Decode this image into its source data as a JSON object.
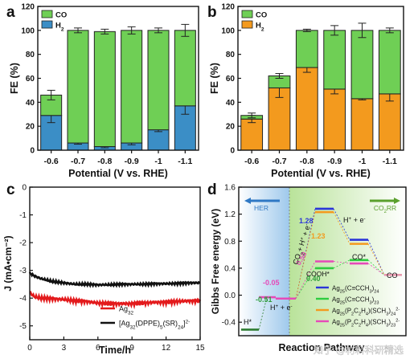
{
  "colors": {
    "co": "#6fcf55",
    "h2_a": "#3b8ec6",
    "h2_b": "#f39a1e",
    "axis": "#111111",
    "her_bg": "#c9e2f3",
    "co2rr_bg": "#e3f2d3",
    "c_ag32": "#e31a1c",
    "c_cluster": "#111111",
    "d_s1": "#2b35d8",
    "d_s2": "#2ecc40",
    "d_s3": "#f39a1e",
    "d_s4": "#e64ab8",
    "d_s5": "#e89ab0"
  },
  "watermark": "知乎 @材料科研精选",
  "chart_data": [
    {
      "panel": "a",
      "type": "bar",
      "stacked": true,
      "xlabel": "Potential (V vs. RHE)",
      "ylabel": "FE (%)",
      "ylim": [
        0,
        120
      ],
      "yticks": [
        0,
        20,
        40,
        60,
        80,
        100,
        120
      ],
      "categories": [
        "-0.6",
        "-0.7",
        "-0.8",
        "-0.9",
        "-1",
        "-1.1"
      ],
      "legend_position": "top-left",
      "series": [
        {
          "name": "H2",
          "color_key": "h2_a",
          "values": [
            29,
            6,
            3,
            6,
            17,
            37
          ],
          "errors": [
            6,
            1,
            1,
            1.5,
            1.5,
            7
          ]
        },
        {
          "name": "CO",
          "color_key": "co",
          "values": [
            17,
            94,
            96,
            94,
            83,
            63
          ],
          "errors": [
            4,
            2,
            2,
            3,
            2,
            5
          ]
        }
      ]
    },
    {
      "panel": "b",
      "type": "bar",
      "stacked": true,
      "xlabel": "Potential (V vs. RHE)",
      "ylabel": "FE (%)",
      "ylim": [
        0,
        120
      ],
      "yticks": [
        0,
        20,
        40,
        60,
        80,
        100,
        120
      ],
      "categories": [
        "-0.6",
        "-0.7",
        "-0.8",
        "-0.9",
        "-1",
        "-1.1"
      ],
      "legend_position": "top-left",
      "series": [
        {
          "name": "H2",
          "color_key": "h2_b",
          "values": [
            26,
            52,
            69,
            51,
            43,
            47
          ],
          "errors": [
            3,
            8,
            4,
            4,
            1,
            6
          ]
        },
        {
          "name": "CO",
          "color_key": "co",
          "values": [
            3,
            10,
            31,
            49,
            57,
            53
          ],
          "errors": [
            2,
            2,
            1,
            4,
            6,
            2
          ]
        }
      ]
    },
    {
      "panel": "c",
      "type": "line",
      "xlabel": "Time/h",
      "ylabel": "J (mA•cm⁻²)",
      "xlim": [
        0,
        15
      ],
      "ylim": [
        -5.5,
        0
      ],
      "xticks": [
        0,
        3,
        6,
        9,
        12,
        15
      ],
      "yticks": [
        -5,
        -4,
        -3,
        -2,
        -1,
        0
      ],
      "legend_position": "bottom-center",
      "series": [
        {
          "name": "Ag32",
          "color_key": "c_ag32",
          "x": [
            0,
            0.4,
            1,
            2,
            3,
            4,
            5,
            6,
            7,
            8,
            9,
            10,
            11,
            12,
            13,
            14,
            15
          ],
          "y": [
            -3.8,
            -3.95,
            -4.0,
            -4.02,
            -4.05,
            -4.1,
            -4.12,
            -4.18,
            -4.2,
            -4.2,
            -4.2,
            -4.18,
            -4.15,
            -4.15,
            -4.12,
            -4.1,
            -4.1
          ]
        },
        {
          "name": "[Ag32(DPPE)5(SR)24]2-",
          "color_key": "c_cluster",
          "x": [
            0,
            0.4,
            1,
            2,
            3,
            4,
            5,
            6,
            7,
            8,
            9,
            10,
            11,
            12,
            13,
            14,
            15
          ],
          "y": [
            -3.1,
            -3.2,
            -3.3,
            -3.4,
            -3.45,
            -3.5,
            -3.5,
            -3.52,
            -3.52,
            -3.5,
            -3.5,
            -3.5,
            -3.48,
            -3.48,
            -3.47,
            -3.45,
            -3.45
          ]
        }
      ]
    },
    {
      "panel": "d",
      "type": "line",
      "xlabel": "Reaction Pathway",
      "ylabel": "Gibbs Free energy (eV)",
      "ylim": [
        -0.6,
        1.6
      ],
      "yticks": [
        -0.4,
        0.0,
        0.4,
        0.8,
        1.2,
        1.6
      ],
      "region_labels": [
        "HER",
        "CO2RR"
      ],
      "step_labels": [
        "H*",
        "H+ + e-",
        "COOH*",
        "CO*",
        "CO"
      ],
      "reaction_label": "CO2+ H+ + e-",
      "proton_label": "H+ + e-",
      "legend_position": "bottom-right",
      "her_levels": {
        "h_star": -0.51,
        "start": -0.05
      },
      "annotations": [
        "-0.51",
        "-0.05",
        "1.28",
        "1.23",
        "0.50",
        "0.40"
      ],
      "series": [
        {
          "name": "Ag25(C≡CCH3)24",
          "color_key": "d_s1",
          "cooh": 1.28,
          "co_star": 0.82
        },
        {
          "name": "Ag25(C≡CCH3)23",
          "color_key": "d_s2",
          "cooh": 0.4,
          "co_star": 0.52
        },
        {
          "name": "Ag25(P2C2H4)(SCH3)24 2-",
          "color_key": "d_s3",
          "cooh": 1.23,
          "co_star": 0.76
        },
        {
          "name": "Ag25(P2C2H4)(SCH3)23 2-",
          "color_key": "d_s4",
          "cooh": 0.5,
          "co_star": 0.47
        }
      ],
      "final_co": 0.3
    }
  ]
}
